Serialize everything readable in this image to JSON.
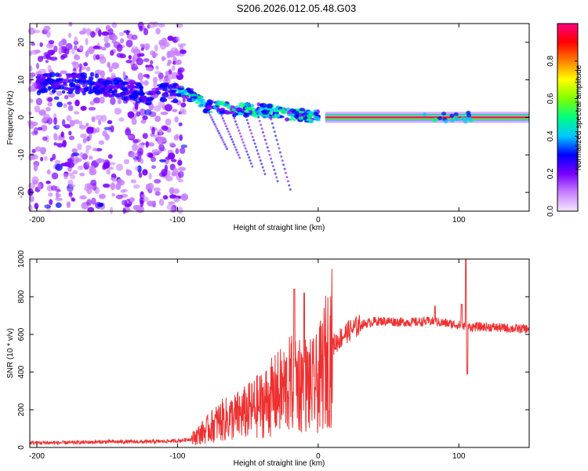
{
  "title": "S206.2026.012.05.48.G03",
  "chart_data": [
    {
      "type": "heatmap",
      "name": "spectrogram",
      "xlabel": "Height of straight line (km)",
      "ylabel": "Frequency (Hz)",
      "xlim": [
        -205,
        150
      ],
      "ylim": [
        -25,
        25
      ],
      "xticks": [
        -200,
        -100,
        0,
        100
      ],
      "xtick_labels": [
        "-200",
        "-100",
        "0",
        "100"
      ],
      "yticks": [
        -20,
        -10,
        0,
        10,
        20
      ],
      "ytick_labels": [
        "-20",
        "-10",
        "0",
        "10",
        "20"
      ],
      "description_series": [
        {
          "name": "noise-region",
          "x_range": [
            -205,
            -95
          ],
          "freq_range": [
            -25,
            25
          ]
        },
        {
          "name": "dispersive-signal",
          "points": [
            {
              "x": -200,
              "f": 9
            },
            {
              "x": -160,
              "f": 9
            },
            {
              "x": -120,
              "f": 6
            },
            {
              "x": -95,
              "f": 7
            },
            {
              "x": -80,
              "f": 3
            },
            {
              "x": -60,
              "f": 2
            },
            {
              "x": -40,
              "f": 2
            },
            {
              "x": -25,
              "f": 1
            },
            {
              "x": -10,
              "f": 0.5
            },
            {
              "x": 0,
              "f": 0
            }
          ]
        },
        {
          "name": "carrier-line",
          "x_range": [
            5,
            150
          ],
          "f": 0
        }
      ]
    },
    {
      "type": "colorbar",
      "name": "spectral-amplitude-colorbar",
      "label": "Normalized spectral amplitude",
      "range": [
        0.0,
        1.0
      ],
      "ticks": [
        0.0,
        0.2,
        0.4,
        0.6,
        0.8
      ],
      "tick_labels": [
        "0.0",
        "0.2",
        "0.4",
        "0.6",
        "0.8"
      ],
      "colors": [
        "#f3e6ff",
        "#c880ff",
        "#7a00ff",
        "#0000ff",
        "#00c8ff",
        "#00ff80",
        "#80ff00",
        "#ffff00",
        "#ff8000",
        "#ff0000",
        "#ff0080"
      ]
    },
    {
      "type": "line",
      "name": "snr",
      "xlabel": "Height of straight line (km)",
      "ylabel": "SNR (10 * v/v)",
      "xlim": [
        -205,
        150
      ],
      "ylim": [
        0,
        1000
      ],
      "xticks": [
        -200,
        -100,
        0,
        100
      ],
      "xtick_labels": [
        "-200",
        "-100",
        "0",
        "100"
      ],
      "yticks": [
        0,
        200,
        400,
        600,
        800,
        1000
      ],
      "ytick_labels": [
        "0",
        "200",
        "400",
        "600",
        "800",
        "1000"
      ],
      "color": "#ee3030",
      "series": [
        {
          "name": "SNR",
          "x": [
            -205,
            -180,
            -150,
            -120,
            -100,
            -90,
            -80,
            -70,
            -60,
            -50,
            -40,
            -30,
            -20,
            -15,
            -10,
            -5,
            0,
            5,
            10,
            20,
            30,
            40,
            50,
            60,
            70,
            80,
            90,
            100,
            105,
            110,
            120,
            130,
            140,
            150
          ],
          "y": [
            25,
            25,
            30,
            30,
            35,
            45,
            90,
            140,
            160,
            190,
            230,
            280,
            330,
            360,
            340,
            320,
            340,
            450,
            540,
            610,
            650,
            670,
            670,
            665,
            665,
            670,
            660,
            650,
            640,
            640,
            640,
            635,
            630,
            630
          ]
        }
      ],
      "peaks": [
        {
          "x": -17,
          "y": 840
        },
        {
          "x": -10,
          "y": 820
        },
        {
          "x": 83,
          "y": 750
        },
        {
          "x": 102,
          "y": 760
        },
        {
          "x": 105,
          "y": 1000
        }
      ]
    }
  ]
}
